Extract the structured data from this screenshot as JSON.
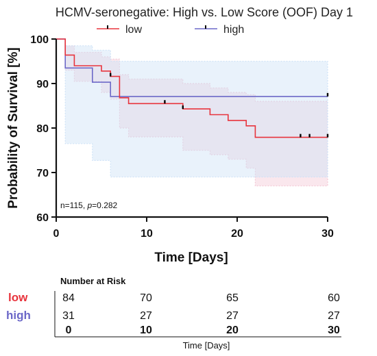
{
  "chart_data": {
    "type": "line",
    "title": "HCMV-seronegative: High vs. Low Score (OOF) Day 1",
    "xlabel": "Time [Days]",
    "ylabel": "Probability of Survival [%]",
    "xlim": [
      0,
      30
    ],
    "ylim": [
      60,
      100
    ],
    "x_ticks": [
      0,
      10,
      20,
      30
    ],
    "y_ticks": [
      60,
      70,
      80,
      90,
      100
    ],
    "grid": false,
    "legend": "top",
    "annotation_prefix": "n=115, ",
    "annotation_p": "p",
    "annotation_suffix": "=0.282",
    "series": [
      {
        "name": "low",
        "color": "#e8333c",
        "band_color": "#f3c9d6",
        "steps": [
          [
            0,
            100
          ],
          [
            1,
            96.4
          ],
          [
            2,
            94
          ],
          [
            5,
            92.8
          ],
          [
            6,
            91.6
          ],
          [
            7,
            86.8
          ],
          [
            8,
            85.5
          ],
          [
            14,
            84.3
          ],
          [
            17,
            83
          ],
          [
            19,
            81.7
          ],
          [
            21,
            80.5
          ],
          [
            22,
            77.9
          ],
          [
            30,
            77.9
          ]
        ],
        "lower_ci": [
          [
            0,
            100
          ],
          [
            1,
            93
          ],
          [
            2,
            90.5
          ],
          [
            5,
            88
          ],
          [
            6,
            86.5
          ],
          [
            7,
            80
          ],
          [
            8,
            78
          ],
          [
            14,
            75
          ],
          [
            17,
            74
          ],
          [
            19,
            73
          ],
          [
            21,
            71
          ],
          [
            22,
            67
          ],
          [
            30,
            67
          ]
        ],
        "upper_ci": [
          [
            0,
            100
          ],
          [
            1,
            98.5
          ],
          [
            2,
            97
          ],
          [
            5,
            96
          ],
          [
            6,
            95.5
          ],
          [
            7,
            92
          ],
          [
            8,
            91
          ],
          [
            14,
            90
          ],
          [
            17,
            89
          ],
          [
            19,
            88
          ],
          [
            21,
            87.5
          ],
          [
            22,
            86
          ],
          [
            30,
            86
          ]
        ],
        "censored": [
          [
            6,
            91.6
          ],
          [
            12,
            85.5
          ],
          [
            14,
            84.3
          ],
          [
            27,
            77.9
          ],
          [
            28,
            77.9
          ],
          [
            30,
            77.9
          ]
        ]
      },
      {
        "name": "high",
        "color": "#6c68c8",
        "band_color": "#cfe3f7",
        "steps": [
          [
            0,
            100
          ],
          [
            1,
            93.5
          ],
          [
            4,
            90.3
          ],
          [
            6,
            87.1
          ],
          [
            30,
            87.1
          ]
        ],
        "lower_ci": [
          [
            0,
            100
          ],
          [
            1,
            76.5
          ],
          [
            4,
            72.7
          ],
          [
            6,
            69
          ],
          [
            30,
            69
          ]
        ],
        "upper_ci": [
          [
            0,
            100
          ],
          [
            1,
            98.5
          ],
          [
            4,
            97.5
          ],
          [
            6,
            95
          ],
          [
            30,
            95
          ]
        ],
        "censored": [
          [
            30,
            87.1
          ]
        ]
      }
    ],
    "risk_table": {
      "header": "Number at Risk",
      "xlabel": "Time [Days]",
      "times": [
        "0",
        "10",
        "20",
        "30"
      ],
      "rows": [
        {
          "label": "low",
          "color": "#e8333c",
          "values": [
            "84",
            "70",
            "65",
            "60"
          ]
        },
        {
          "label": "high",
          "color": "#6c68c8",
          "values": [
            "31",
            "27",
            "27",
            "27"
          ]
        }
      ]
    }
  }
}
